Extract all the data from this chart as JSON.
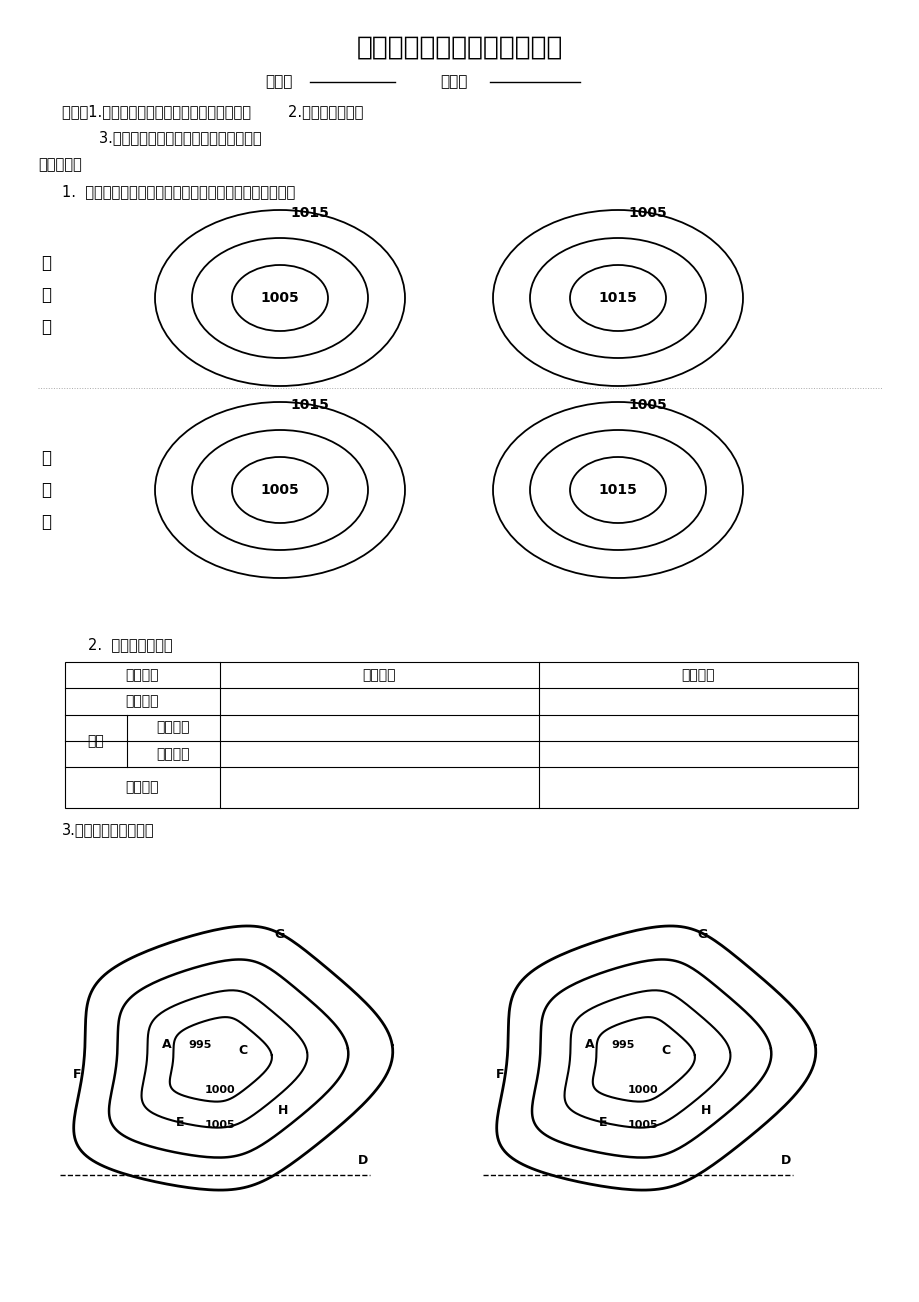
{
  "title": "高、低压系统和锋面气旋系统",
  "name_label": "姓名：",
  "class_label": "班级：",
  "kaodian_line1": "考点：1.气压系统的概念、分类、气流运动形式        2.锋面气旋的判读",
  "kaodian_line2": "        3.气压系统，锋面气旋系统对天气的影响",
  "xuexiline": "学习过程：",
  "task1": "1.  画图，在下图中画出气流的运动状况（图中为等压线）",
  "north_label": "北\n半\n球",
  "south_label": "南\n半\n球",
  "task2": "2.  看图，归纳总结",
  "task3": "3.画图：锋面气旋系统",
  "bg_color": "#ffffff",
  "text_color": "#000000",
  "table_headers": [
    "气压状况",
    "低压系统",
    "高压系统"
  ],
  "row_label_col0": "气流"
}
